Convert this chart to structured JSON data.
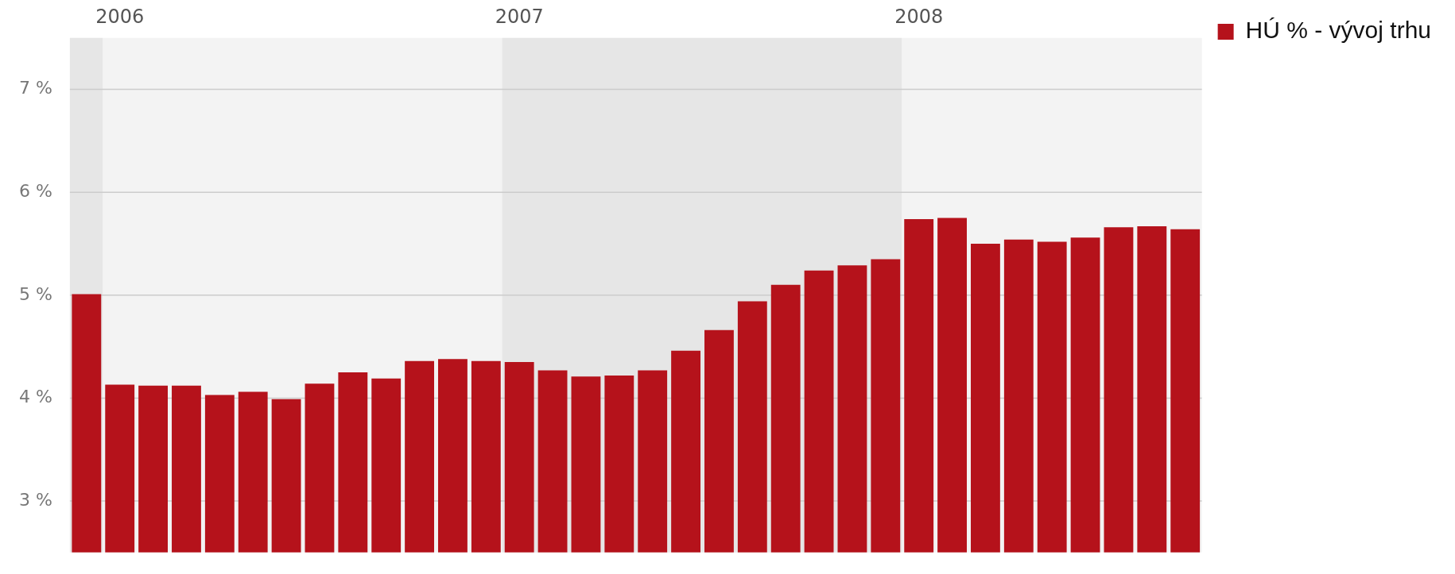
{
  "chart_data": {
    "type": "bar",
    "x": [
      "2005-12",
      "2006-01",
      "2006-02",
      "2006-03",
      "2006-04",
      "2006-05",
      "2006-06",
      "2006-07",
      "2006-08",
      "2006-09",
      "2006-10",
      "2006-11",
      "2006-12",
      "2007-01",
      "2007-02",
      "2007-03",
      "2007-04",
      "2007-05",
      "2007-06",
      "2007-07",
      "2007-08",
      "2007-09",
      "2007-10",
      "2007-11",
      "2007-12",
      "2008-01",
      "2008-02",
      "2008-03",
      "2008-04",
      "2008-05",
      "2008-06",
      "2008-07",
      "2008-08",
      "2008-09"
    ],
    "series": [
      {
        "name": "HÚ % - vývoj trhu",
        "color": "#b5121b",
        "values": [
          5.01,
          4.13,
          4.12,
          4.12,
          4.03,
          4.06,
          3.99,
          4.14,
          4.25,
          4.19,
          4.36,
          4.38,
          4.36,
          4.35,
          4.27,
          4.21,
          4.22,
          4.27,
          4.46,
          4.66,
          4.94,
          5.1,
          5.24,
          5.29,
          5.35,
          5.74,
          5.75,
          5.5,
          5.54,
          5.52,
          5.56,
          5.66,
          5.67,
          5.64
        ]
      }
    ],
    "xlim": [
      "2005-11-16",
      "2008-09-16"
    ],
    "xticks": [
      {
        "value": "2006",
        "label": "2006"
      },
      {
        "value": "2007",
        "label": "2007"
      },
      {
        "value": "2008",
        "label": "2008"
      }
    ],
    "ylim": [
      2.5,
      7.5
    ],
    "yticks": [
      {
        "value": 3,
        "label": "3 %"
      },
      {
        "value": 4,
        "label": "4 %"
      },
      {
        "value": 5,
        "label": "5 %"
      },
      {
        "value": 6,
        "label": "6 %"
      },
      {
        "value": 7,
        "label": "7 %"
      }
    ],
    "bands": [
      {
        "axis": "x",
        "from": "2005-11-16",
        "to": "2005-12-16",
        "color": "#e6e6e6"
      },
      {
        "axis": "x",
        "from": "2006-12-16",
        "to": "2007-12-16",
        "color": "#e6e6e6"
      }
    ],
    "grid": "y",
    "legend": "top right"
  }
}
